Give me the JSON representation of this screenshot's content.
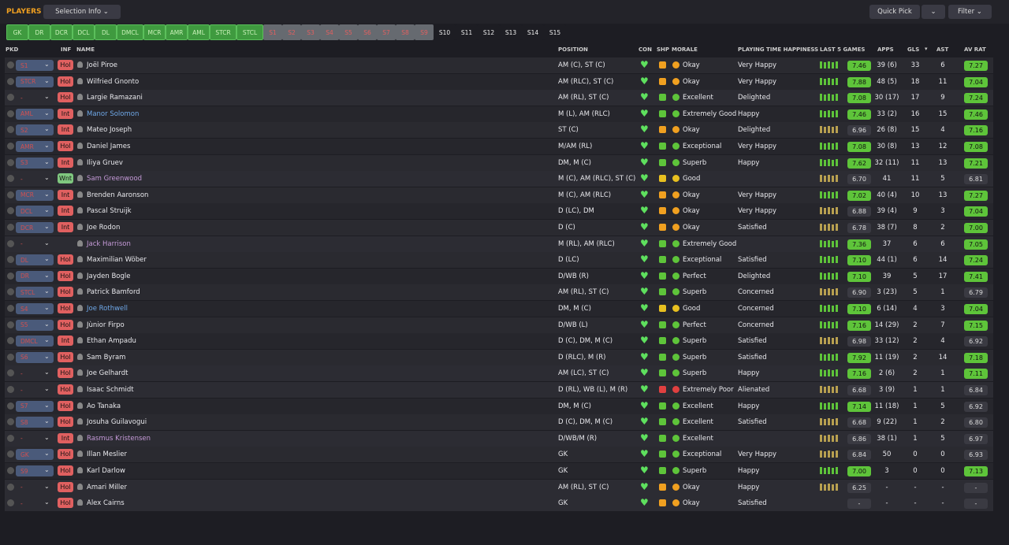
{
  "header": {
    "title": "PLAYERS",
    "selection": "Selection Info",
    "quick_pick": "Quick Pick",
    "filter": "Filter"
  },
  "positions": {
    "selected": [
      "GK",
      "DR",
      "DCR",
      "DCL",
      "DL",
      "DMCL",
      "MCR",
      "AMR",
      "AML",
      "STCR",
      "STCL"
    ],
    "subs_filled": [
      "S1",
      "S2",
      "S3",
      "S4",
      "S5",
      "S6",
      "S7",
      "S8",
      "S9"
    ],
    "subs_empty": [
      "S10",
      "S11",
      "S12",
      "S13",
      "S14",
      "S15"
    ]
  },
  "table": {
    "columns": [
      "PKD",
      "INF",
      "NAME",
      "POSITION",
      "CON",
      "SHP",
      "MORALE",
      "PLAYING TIME HAPPINESS",
      "LAST 5 GAMES",
      "APPS",
      "GLS",
      "AST",
      "AV RAT"
    ],
    "rows": [
      {
        "pkd": "S1",
        "inf": "Hol",
        "name": "Joël Piroe",
        "position": "AM (C), ST (C)",
        "morale": "Okay",
        "pth": "Very Happy",
        "form": "7.46",
        "apps": "39 (6)",
        "gls": "33",
        "ast": "6",
        "avrat": "7.27"
      },
      {
        "pkd": "STCR",
        "inf": "Hol",
        "name": "Wilfried Gnonto",
        "position": "AM (RLC), ST (C)",
        "morale": "Okay",
        "pth": "Very Happy",
        "form": "7.88",
        "apps": "48 (5)",
        "gls": "18",
        "ast": "11",
        "avrat": "7.04"
      },
      {
        "pkd": "-",
        "inf": "Hol",
        "name": "Largie Ramazani",
        "position": "AM (RL), ST (C)",
        "morale": "Excellent",
        "pth": "Delighted",
        "form": "7.08",
        "apps": "30 (17)",
        "gls": "17",
        "ast": "9",
        "avrat": "7.24"
      },
      {
        "pkd": "AML",
        "inf": "Int",
        "name": "Manor Solomon",
        "name_color": "#6fa8e8",
        "position": "M (L), AM (RLC)",
        "morale": "Extremely Good",
        "pth": "Happy",
        "form": "7.46",
        "apps": "33 (2)",
        "gls": "16",
        "ast": "15",
        "avrat": "7.46"
      },
      {
        "pkd": "S2",
        "inf": "Int",
        "name": "Mateo Joseph",
        "position": "ST (C)",
        "morale": "Okay",
        "pth": "Delighted",
        "form": "6.96",
        "apps": "26 (8)",
        "gls": "15",
        "ast": "4",
        "avrat": "7.16"
      },
      {
        "pkd": "AMR",
        "inf": "Hol",
        "name": "Daniel James",
        "position": "M/AM (RL)",
        "morale": "Exceptional",
        "pth": "Very Happy",
        "form": "7.08",
        "apps": "30 (8)",
        "gls": "13",
        "ast": "12",
        "avrat": "7.08"
      },
      {
        "pkd": "S3",
        "inf": "Int",
        "name": "Iliya Gruev",
        "position": "DM, M (C)",
        "morale": "Superb",
        "pth": "Happy",
        "form": "7.62",
        "apps": "32 (11)",
        "gls": "11",
        "ast": "13",
        "avrat": "7.21"
      },
      {
        "pkd": "-",
        "inf": "Wnt",
        "name": "Sam Greenwood",
        "name_color": "#c59ad8",
        "position": "M (C), AM (RLC), ST (C)",
        "morale": "Good",
        "pth": null,
        "form": "6.70",
        "apps": "41",
        "gls": "11",
        "ast": "5",
        "avrat": "6.81"
      },
      {
        "pkd": "MCR",
        "inf": "Int",
        "name": "Brenden Aaronson",
        "position": "M (C), AM (RLC)",
        "morale": "Okay",
        "pth": "Very Happy",
        "form": "7.02",
        "apps": "40 (4)",
        "gls": "10",
        "ast": "13",
        "avrat": "7.27"
      },
      {
        "pkd": "DCL",
        "inf": "Int",
        "name": "Pascal Struijk",
        "position": "D (LC), DM",
        "morale": "Okay",
        "pth": "Very Happy",
        "form": "6.88",
        "apps": "39 (4)",
        "gls": "9",
        "ast": "3",
        "avrat": "7.04"
      },
      {
        "pkd": "DCR",
        "inf": "Int",
        "name": "Joe Rodon",
        "position": "D (C)",
        "morale": "Okay",
        "pth": "Satisfied",
        "form": "6.78",
        "apps": "38 (7)",
        "gls": "8",
        "ast": "2",
        "avrat": "7.00"
      },
      {
        "pkd": "-",
        "inf": null,
        "name": "Jack Harrison",
        "name_color": "#c59ad8",
        "position": "M (RL), AM (RLC)",
        "morale": "Extremely Good",
        "pth": null,
        "form": "7.36",
        "apps": "37",
        "gls": "6",
        "ast": "6",
        "avrat": "7.05"
      },
      {
        "pkd": "DL",
        "inf": "Hol",
        "name": "Maximilian Wöber",
        "position": "D (LC)",
        "morale": "Exceptional",
        "pth": "Satisfied",
        "form": "7.10",
        "apps": "44 (1)",
        "gls": "6",
        "ast": "14",
        "avrat": "7.24"
      },
      {
        "pkd": "DR",
        "inf": "Hol",
        "name": "Jayden Bogle",
        "position": "D/WB (R)",
        "morale": "Perfect",
        "pth": "Delighted",
        "form": "7.10",
        "apps": "39",
        "gls": "5",
        "ast": "17",
        "avrat": "7.41"
      },
      {
        "pkd": "STCL",
        "inf": "Hol",
        "name": "Patrick Bamford",
        "position": "AM (RL), ST (C)",
        "morale": "Superb",
        "pth": "Concerned",
        "form": "6.90",
        "apps": "3 (23)",
        "gls": "5",
        "ast": "1",
        "avrat": "6.79"
      },
      {
        "pkd": "S4",
        "inf": "Hol",
        "name": "Joe Rothwell",
        "name_color": "#6fa8e8",
        "position": "DM, M (C)",
        "morale": "Good",
        "pth": "Concerned",
        "form": "7.10",
        "apps": "6 (14)",
        "gls": "4",
        "ast": "3",
        "avrat": "7.04"
      },
      {
        "pkd": "S5",
        "inf": "Hol",
        "name": "Jùnior Firpo",
        "position": "D/WB (L)",
        "morale": "Perfect",
        "pth": "Concerned",
        "form": "7.16",
        "apps": "14 (29)",
        "gls": "2",
        "ast": "7",
        "avrat": "7.15"
      },
      {
        "pkd": "DMCL",
        "inf": "Int",
        "name": "Ethan Ampadu",
        "position": "D (C), DM, M (C)",
        "morale": "Superb",
        "pth": "Satisfied",
        "form": "6.98",
        "apps": "33 (12)",
        "gls": "2",
        "ast": "4",
        "avrat": "6.92"
      },
      {
        "pkd": "S6",
        "inf": "Hol",
        "name": "Sam Byram",
        "position": "D (RLC), M (R)",
        "morale": "Superb",
        "pth": "Satisfied",
        "form": "7.92",
        "apps": "11 (19)",
        "gls": "2",
        "ast": "14",
        "avrat": "7.18"
      },
      {
        "pkd": "-",
        "inf": "Hol",
        "name": "Joe Gelhardt",
        "position": "AM (LC), ST (C)",
        "morale": "Superb",
        "pth": "Happy",
        "form": "7.16",
        "apps": "2 (6)",
        "gls": "2",
        "ast": "1",
        "avrat": "7.11"
      },
      {
        "pkd": "-",
        "inf": "Hol",
        "name": "Isaac Schmidt",
        "position": "D (RL), WB (L), M (R)",
        "morale": "Extremely Poor",
        "pth": "Alienated",
        "form": "6.68",
        "apps": "3 (9)",
        "gls": "1",
        "ast": "1",
        "avrat": "6.84"
      },
      {
        "pkd": "S7",
        "inf": "Hol",
        "name": "Ao Tanaka",
        "position": "DM, M (C)",
        "morale": "Excellent",
        "pth": "Happy",
        "form": "7.14",
        "apps": "11 (18)",
        "gls": "1",
        "ast": "5",
        "avrat": "6.92"
      },
      {
        "pkd": "S8",
        "inf": "Hol",
        "name": "Josuha Guilavogui",
        "position": "D (C), DM, M (C)",
        "morale": "Excellent",
        "pth": "Satisfied",
        "form": "6.68",
        "apps": "9 (22)",
        "gls": "1",
        "ast": "2",
        "avrat": "6.80"
      },
      {
        "pkd": "-",
        "inf": "Int",
        "name": "Rasmus Kristensen",
        "name_color": "#c59ad8",
        "position": "D/WB/M (R)",
        "morale": "Excellent",
        "pth": null,
        "form": "6.86",
        "apps": "38 (1)",
        "gls": "1",
        "ast": "5",
        "avrat": "6.97"
      },
      {
        "pkd": "GK",
        "inf": "Hol",
        "name": "Illan Meslier",
        "position": "GK",
        "morale": "Exceptional",
        "pth": "Very Happy",
        "form": "6.84",
        "apps": "50",
        "gls": "0",
        "ast": "0",
        "avrat": "6.93"
      },
      {
        "pkd": "S9",
        "inf": "Hol",
        "name": "Karl Darlow",
        "position": "GK",
        "morale": "Superb",
        "pth": "Happy",
        "form": "7.00",
        "apps": "3",
        "gls": "0",
        "ast": "0",
        "avrat": "7.13"
      },
      {
        "pkd": "-",
        "inf": "Hol",
        "name": "Amari Miller",
        "position": "AM (RL), ST (C)",
        "morale": "Okay",
        "pth": "Happy",
        "form": "6.25",
        "apps": "-",
        "gls": "-",
        "ast": "-",
        "avrat": "-"
      },
      {
        "pkd": "-",
        "inf": "Hol",
        "name": "Alex Cairns",
        "position": "GK",
        "morale": "Okay",
        "pth": "Satisfied",
        "form": "-",
        "apps": "-",
        "gls": "-",
        "ast": "-",
        "avrat": "-"
      }
    ]
  }
}
